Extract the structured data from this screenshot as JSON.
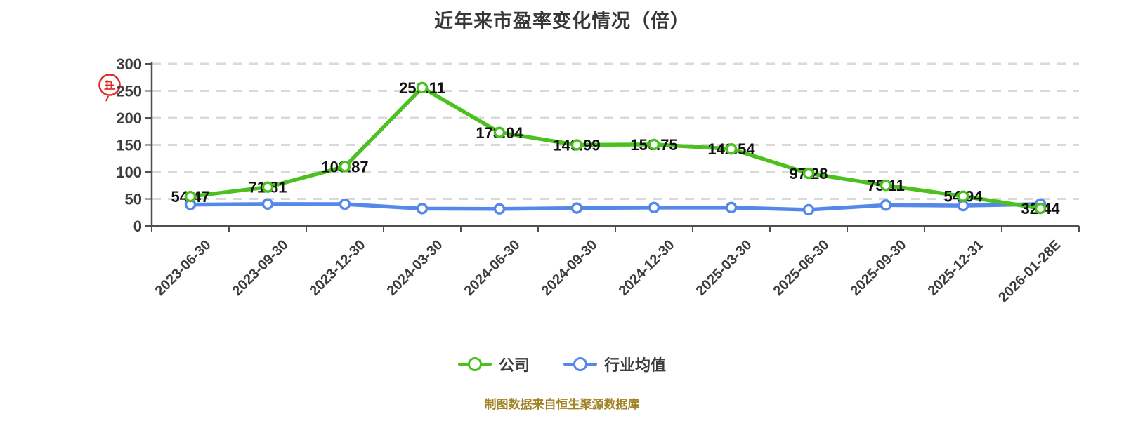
{
  "title": "近年来市盈率变化情况（倍）",
  "source_note": "制图数据来自恒生聚源数据库",
  "watermark": {
    "icon": "red-seal-stamp-icon",
    "color": "#df2b25"
  },
  "legend": [
    {
      "label": "公司",
      "color": "#4cc01e"
    },
    {
      "label": "行业均值",
      "color": "#5588e8"
    }
  ],
  "axes": {
    "y_tick_labels": [
      "0",
      "50",
      "100",
      "150",
      "200",
      "250",
      "300"
    ]
  },
  "chart_data": {
    "type": "line",
    "title": "近年来市盈率变化情况（倍）",
    "categories": [
      "2023-06-30",
      "2023-09-30",
      "2023-12-30",
      "2024-03-30",
      "2024-06-30",
      "2024-09-30",
      "2024-12-30",
      "2025-03-30",
      "2025-06-30",
      "2025-09-30",
      "2025-12-31",
      "2026-01-28E"
    ],
    "series": [
      {
        "name": "公司",
        "color": "#4cc01e",
        "values": [
          54.47,
          71.81,
          109.87,
          256.11,
          173.04,
          149.99,
          150.75,
          142.54,
          97.28,
          75.11,
          54.94,
          32.44
        ],
        "point_labels": true
      },
      {
        "name": "行业均值",
        "color": "#5588e8",
        "values": [
          39.5,
          40.5,
          40.2,
          32.0,
          31.5,
          33.0,
          34.0,
          34.0,
          30.0,
          38.5,
          37.5,
          40.5
        ],
        "values_estimated": true,
        "point_labels": false
      }
    ],
    "ylim": [
      0,
      300
    ],
    "ytick_step": 50,
    "xlabel": "",
    "ylabel": "",
    "grid": "horizontal-dashed",
    "x_label_rotation": 45,
    "legend_position": "bottom"
  },
  "colors": {
    "background": "#ffffff",
    "grid": "#d9d9d9",
    "axis": "#4f4f4f",
    "tick_label": "#3c3c3c",
    "data_label": "#111111",
    "title": "#373737",
    "source_note": "#a18326",
    "marker_fill": "#ffffff"
  }
}
